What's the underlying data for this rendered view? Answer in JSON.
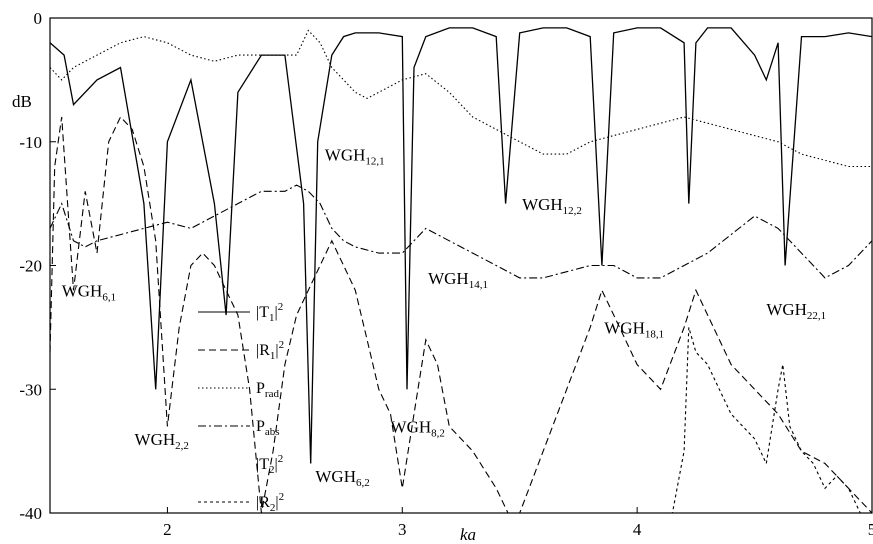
{
  "chart_data": {
    "type": "line",
    "xlabel": "ka",
    "ylabel": "dB",
    "xlim": [
      1.5,
      5
    ],
    "ylim": [
      -40,
      0
    ],
    "x_ticks": [
      2,
      3,
      4,
      5
    ],
    "y_ticks": [
      0,
      -10,
      -20,
      -30,
      -40
    ],
    "grid": false,
    "legend": {
      "placement": "lower-center",
      "entries": [
        {
          "key": "T1",
          "label": "|T",
          "sub": "1",
          "suffix": "|",
          "sup": "2",
          "style": "solid"
        },
        {
          "key": "R1",
          "label": "|R",
          "sub": "1",
          "suffix": "|",
          "sup": "2",
          "style": "dashed"
        },
        {
          "key": "Prad",
          "label": "P",
          "sub": "rad",
          "suffix": "",
          "sup": "",
          "style": "dotted"
        },
        {
          "key": "Pabs",
          "label": "P",
          "sub": "abs",
          "suffix": "",
          "sup": "",
          "style": "dashdot"
        },
        {
          "key": "T2",
          "label": "|T",
          "sub": "2",
          "suffix": "|",
          "sup": "2",
          "style": "none"
        },
        {
          "key": "R2",
          "label": "|R",
          "sub": "2",
          "suffix": "|",
          "sup": "2",
          "style": "shortdash"
        }
      ]
    },
    "annotations": [
      {
        "main": "WGH",
        "sub": "6,1",
        "x": 1.55,
        "y": -22.5
      },
      {
        "main": "WGH",
        "sub": "2,2",
        "x": 1.86,
        "y": -34.5
      },
      {
        "main": "WGH",
        "sub": "6,2",
        "x": 2.63,
        "y": -37.5
      },
      {
        "main": "WGH",
        "sub": "12,1",
        "x": 2.67,
        "y": -11.5
      },
      {
        "main": "WGH",
        "sub": "8,2",
        "x": 2.95,
        "y": -33.5
      },
      {
        "main": "WGH",
        "sub": "14,1",
        "x": 3.11,
        "y": -21.5
      },
      {
        "main": "WGH",
        "sub": "12,2",
        "x": 3.51,
        "y": -15.5
      },
      {
        "main": "WGH",
        "sub": "18,1",
        "x": 3.86,
        "y": -25.5
      },
      {
        "main": "WGH",
        "sub": "22,1",
        "x": 4.55,
        "y": -24.0
      }
    ],
    "series": [
      {
        "key": "T1",
        "style": "solid",
        "x": [
          1.5,
          1.56,
          1.6,
          1.7,
          1.8,
          1.9,
          1.95,
          2.0,
          2.1,
          2.2,
          2.25,
          2.3,
          2.4,
          2.5,
          2.58,
          2.61,
          2.64,
          2.7,
          2.75,
          2.8,
          2.9,
          3.0,
          3.02,
          3.05,
          3.1,
          3.2,
          3.3,
          3.4,
          3.44,
          3.5,
          3.6,
          3.7,
          3.8,
          3.85,
          3.9,
          4.0,
          4.1,
          4.2,
          4.22,
          4.25,
          4.3,
          4.4,
          4.5,
          4.55,
          4.6,
          4.63,
          4.7,
          4.8,
          4.9,
          5.0
        ],
        "y": [
          -2,
          -3,
          -7,
          -5,
          -4,
          -15,
          -30,
          -10,
          -5,
          -15,
          -24,
          -6,
          -3,
          -3,
          -15,
          -36,
          -10,
          -3,
          -1.5,
          -1.2,
          -1.2,
          -1.5,
          -30,
          -4,
          -1.5,
          -0.8,
          -0.8,
          -1.5,
          -15,
          -1.2,
          -0.8,
          -0.8,
          -1.5,
          -20,
          -1.2,
          -0.8,
          -0.8,
          -2,
          -15,
          -2,
          -0.8,
          -0.8,
          -3,
          -5,
          -2,
          -20,
          -1.5,
          -1.5,
          -1.2,
          -1.5
        ]
      },
      {
        "key": "R1",
        "style": "dashed",
        "x": [
          1.5,
          1.52,
          1.55,
          1.6,
          1.65,
          1.7,
          1.75,
          1.8,
          1.85,
          1.9,
          1.95,
          2.0,
          2.05,
          2.1,
          2.15,
          2.2,
          2.25,
          2.3,
          2.35,
          2.4,
          2.45,
          2.5,
          2.55,
          2.6,
          2.65,
          2.7,
          2.75,
          2.8,
          2.85,
          2.9,
          2.95,
          3.0,
          3.05,
          3.1,
          3.15,
          3.2,
          3.3,
          3.4,
          3.45,
          3.5,
          3.6,
          3.7,
          3.8,
          3.85,
          3.9,
          4.0,
          4.1,
          4.2,
          4.25,
          4.3,
          4.4,
          4.5,
          4.6,
          4.7,
          4.8,
          4.9,
          5.0
        ],
        "y": [
          -27,
          -12,
          -8,
          -22,
          -14,
          -19,
          -10,
          -8,
          -9,
          -12,
          -18,
          -33,
          -25,
          -20,
          -19,
          -20,
          -22,
          -24,
          -30,
          -40,
          -35,
          -28,
          -24,
          -22,
          -20,
          -18,
          -20,
          -22,
          -26,
          -30,
          -32,
          -38,
          -32,
          -26,
          -28,
          -33,
          -35,
          -38,
          -42,
          -40,
          -35,
          -30,
          -25,
          -22,
          -24,
          -28,
          -30,
          -25,
          -22,
          -24,
          -28,
          -30,
          -32,
          -35,
          -36,
          -38,
          -40
        ]
      },
      {
        "key": "Prad",
        "style": "dotted",
        "x": [
          1.5,
          1.55,
          1.6,
          1.7,
          1.8,
          1.9,
          2.0,
          2.1,
          2.2,
          2.3,
          2.4,
          2.5,
          2.55,
          2.6,
          2.65,
          2.7,
          2.75,
          2.8,
          2.85,
          2.9,
          3.0,
          3.1,
          3.2,
          3.3,
          3.4,
          3.5,
          3.6,
          3.7,
          3.8,
          3.9,
          4.0,
          4.1,
          4.2,
          4.3,
          4.4,
          4.5,
          4.6,
          4.7,
          4.8,
          4.9,
          5.0
        ],
        "y": [
          -4,
          -5,
          -4,
          -3,
          -2,
          -1.5,
          -2,
          -3,
          -3.5,
          -3,
          -3,
          -3,
          -3,
          -1,
          -2,
          -4,
          -5,
          -6,
          -6.5,
          -6,
          -5,
          -4.5,
          -6,
          -8,
          -9,
          -10,
          -11,
          -11,
          -10,
          -9.5,
          -9,
          -8.5,
          -8,
          -8.5,
          -9,
          -9.5,
          -10,
          -11,
          -11.5,
          -12,
          -12
        ]
      },
      {
        "key": "Pabs",
        "style": "dashdot",
        "x": [
          1.5,
          1.55,
          1.6,
          1.65,
          1.7,
          1.8,
          1.9,
          2.0,
          2.1,
          2.2,
          2.3,
          2.4,
          2.5,
          2.55,
          2.6,
          2.65,
          2.7,
          2.75,
          2.8,
          2.9,
          3.0,
          3.05,
          3.1,
          3.2,
          3.3,
          3.4,
          3.5,
          3.6,
          3.7,
          3.8,
          3.9,
          4.0,
          4.1,
          4.2,
          4.3,
          4.4,
          4.5,
          4.6,
          4.7,
          4.8,
          4.9,
          5.0
        ],
        "y": [
          -17,
          -15,
          -18,
          -18.5,
          -18,
          -17.5,
          -17,
          -16.5,
          -17,
          -16,
          -15,
          -14,
          -14,
          -13.5,
          -14,
          -15,
          -17,
          -18,
          -18.5,
          -19,
          -19,
          -18,
          -17,
          -18,
          -19,
          -20,
          -21,
          -21,
          -20.5,
          -20,
          -20,
          -21,
          -21,
          -20,
          -19,
          -17.5,
          -16,
          -17,
          -19,
          -21,
          -20,
          -18
        ]
      },
      {
        "key": "R2",
        "style": "shortdash",
        "x": [
          3.86,
          3.9,
          4.0,
          4.1,
          4.15,
          4.2,
          4.22,
          4.25,
          4.3,
          4.35,
          4.4,
          4.5,
          4.55,
          4.6,
          4.62,
          4.65,
          4.7,
          4.75,
          4.8,
          4.85,
          4.9,
          4.95,
          5.0
        ],
        "y": [
          -40,
          -40,
          -40,
          -40,
          -40,
          -35,
          -25,
          -27,
          -28,
          -30,
          -32,
          -34,
          -36,
          -30,
          -28,
          -33,
          -35,
          -36,
          -38,
          -37,
          -38,
          -40,
          -40
        ]
      }
    ]
  }
}
